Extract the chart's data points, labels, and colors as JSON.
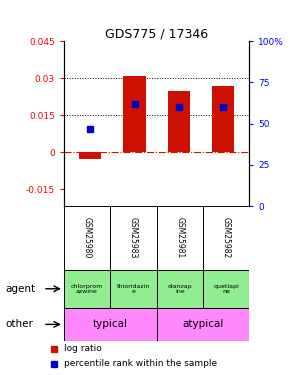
{
  "title": "GDS775 / 17346",
  "samples": [
    "GSM25980",
    "GSM25983",
    "GSM25981",
    "GSM25982"
  ],
  "log_ratios": [
    -0.003,
    0.031,
    0.025,
    0.027
  ],
  "percentile_ranks": [
    47.0,
    62.0,
    60.0,
    60.0
  ],
  "ylim_left": [
    -0.022,
    0.045
  ],
  "ylim_right": [
    0,
    100
  ],
  "yticks_left": [
    -0.015,
    0,
    0.015,
    0.03,
    0.045
  ],
  "yticks_right": [
    0,
    25,
    50,
    75,
    100
  ],
  "ytick_labels_left": [
    "-0.015",
    "0",
    "0.015",
    "0.03",
    "0.045"
  ],
  "ytick_labels_right": [
    "0",
    "25",
    "50",
    "75",
    "100%"
  ],
  "agents": [
    "chlorprom\nazwine",
    "thioridazin\ne",
    "olanzap\nine",
    "quetiapi\nne"
  ],
  "other_groups": [
    [
      "typical",
      2
    ],
    [
      "atypical",
      2
    ]
  ],
  "other_color": "#FF88FF",
  "bar_color": "#CC1100",
  "dot_color": "#0000CC",
  "hline_color": "#CC1100",
  "background_color": "#ffffff",
  "sample_bg_color": "#C0C0C0",
  "agent_bg_color": "#90EE90"
}
